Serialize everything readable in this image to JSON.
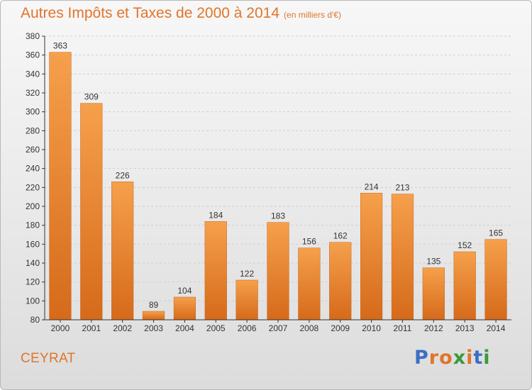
{
  "header": {
    "title": "Autres Impôts et Taxes de 2000 à 2014",
    "subtitle": "(en milliers d'€)"
  },
  "footer": {
    "city": "CEYRAT",
    "brand": "Proxiti",
    "brand_colors": [
      "#3a6fc4",
      "#e0752a",
      "#e0752a",
      "#3a9a3a",
      "#e0752a",
      "#3a6fc4",
      "#3a9a3a"
    ]
  },
  "colors": {
    "bar_light": "#f6a04c",
    "bar_dark": "#d56a1a",
    "title": "#e0752a",
    "grid": "#cfcfcf",
    "axis": "#333333"
  },
  "chart_data": {
    "type": "bar",
    "title": "Autres Impôts et Taxes de 2000 à 2014",
    "subtitle": "(en milliers d'€)",
    "xlabel": "",
    "ylabel": "",
    "categories": [
      "2000",
      "2001",
      "2002",
      "2003",
      "2004",
      "2005",
      "2006",
      "2007",
      "2008",
      "2009",
      "2010",
      "2011",
      "2012",
      "2013",
      "2014"
    ],
    "values": [
      363,
      309,
      226,
      89,
      104,
      184,
      122,
      183,
      156,
      162,
      214,
      213,
      135,
      152,
      165
    ],
    "ylim": [
      80,
      380
    ],
    "yticks": [
      80,
      100,
      120,
      140,
      160,
      180,
      200,
      220,
      240,
      260,
      280,
      300,
      320,
      340,
      360,
      380
    ],
    "grid": true,
    "legend": "none"
  }
}
